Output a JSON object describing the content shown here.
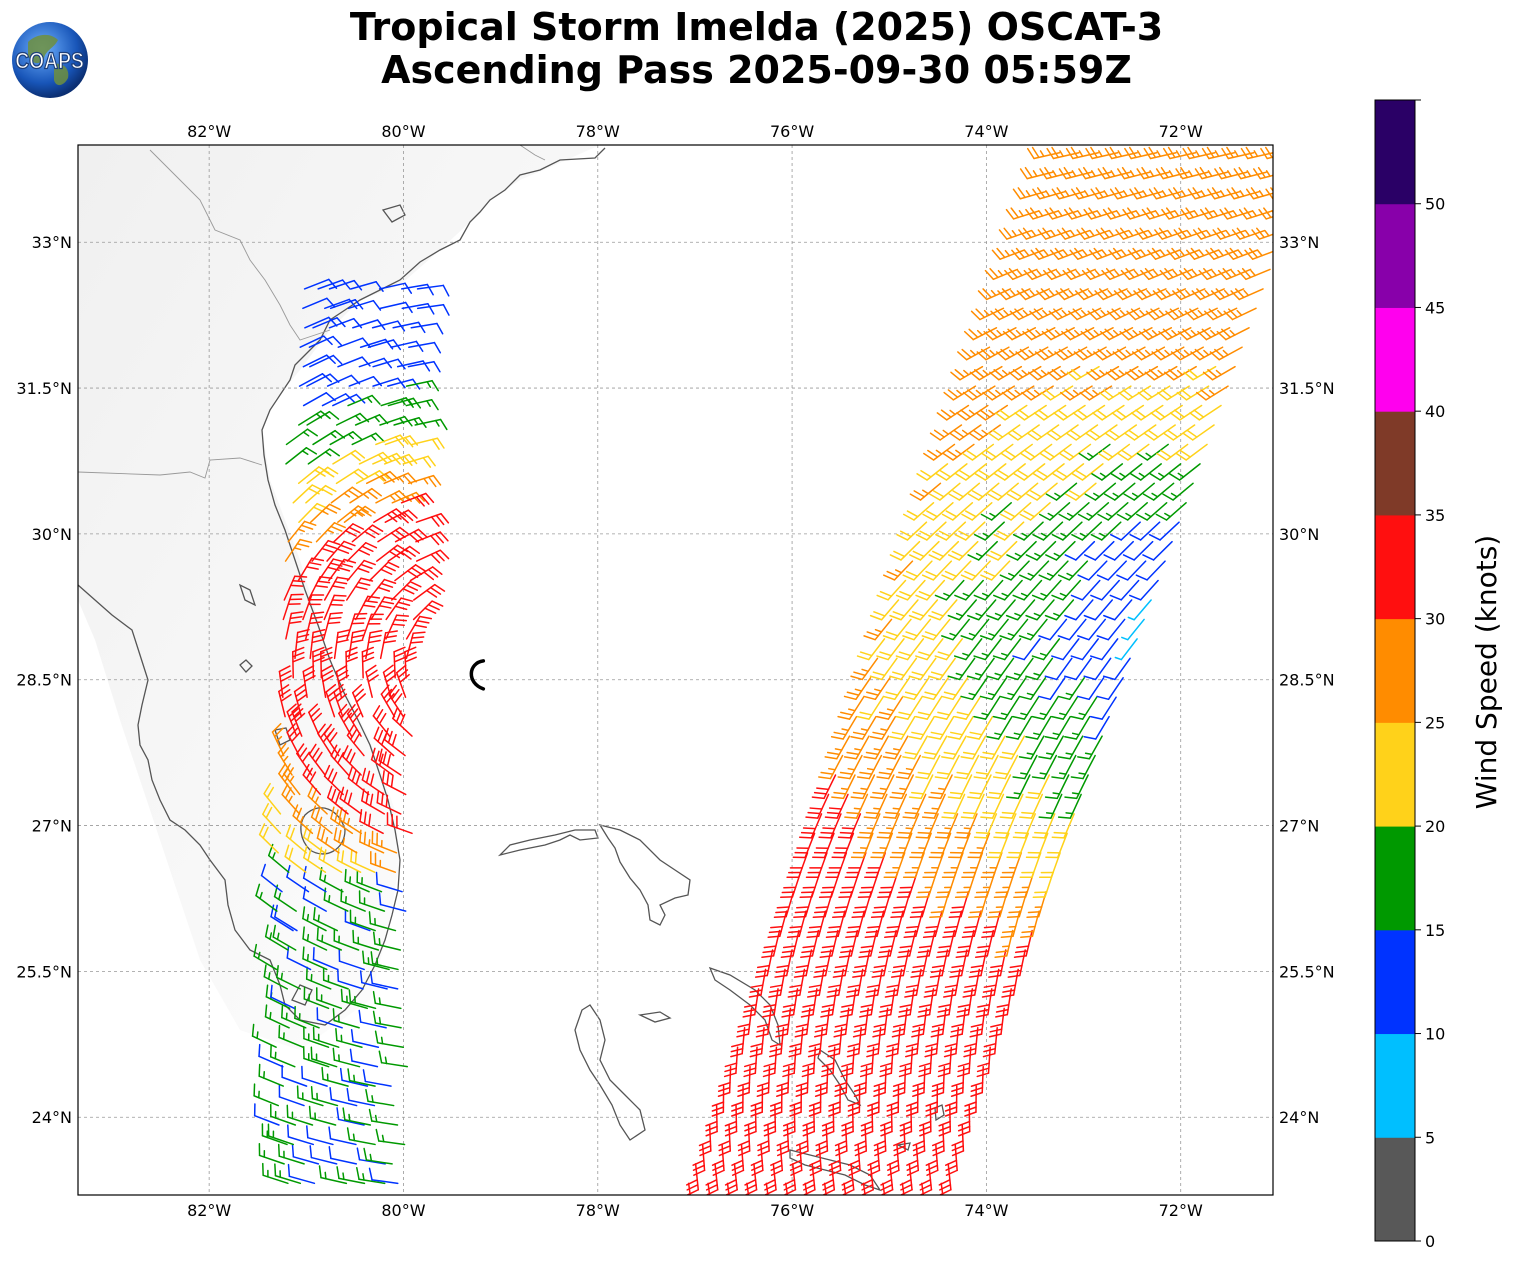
{
  "title": {
    "line1": "Tropical Storm Imelda (2025) OSCAT-3",
    "line2": "Ascending Pass 2025-09-30 05:59Z"
  },
  "logo": {
    "text": "COAPS",
    "icon": "globe-icon"
  },
  "map": {
    "lon_range": [
      -83.35,
      -71.05
    ],
    "lat_range": [
      23.2,
      34.0
    ],
    "lon_ticks": [
      "82°W",
      "80°W",
      "78°W",
      "76°W",
      "74°W",
      "72°W"
    ],
    "lat_ticks": [
      "33°N",
      "31.5°N",
      "30°N",
      "28.5°N",
      "27°N",
      "25.5°N",
      "24°N"
    ],
    "gridlines": true,
    "storm_center_symbol": "tropical-storm-symbol",
    "storm_center": {
      "lon": -79.25,
      "lat": 28.55
    }
  },
  "colorbar": {
    "label": "Wind Speed (knots)",
    "ticks": [
      "0",
      "5",
      "10",
      "15",
      "20",
      "25",
      "30",
      "35",
      "40",
      "45",
      "50"
    ],
    "bins": [
      {
        "min": 0,
        "max": 5,
        "color": "#585858"
      },
      {
        "min": 5,
        "max": 10,
        "color": "#00bfff"
      },
      {
        "min": 10,
        "max": 15,
        "color": "#0033ff"
      },
      {
        "min": 15,
        "max": 20,
        "color": "#009900"
      },
      {
        "min": 20,
        "max": 25,
        "color": "#ffd21a"
      },
      {
        "min": 25,
        "max": 30,
        "color": "#ff8c00"
      },
      {
        "min": 30,
        "max": 35,
        "color": "#ff0f0f"
      },
      {
        "min": 35,
        "max": 40,
        "color": "#7f3a28"
      },
      {
        "min": 40,
        "max": 45,
        "color": "#ff00ee"
      },
      {
        "min": 45,
        "max": 50,
        "color": "#8800aa"
      },
      {
        "min": 50,
        "max": 55,
        "color": "#2a0066"
      }
    ]
  }
}
